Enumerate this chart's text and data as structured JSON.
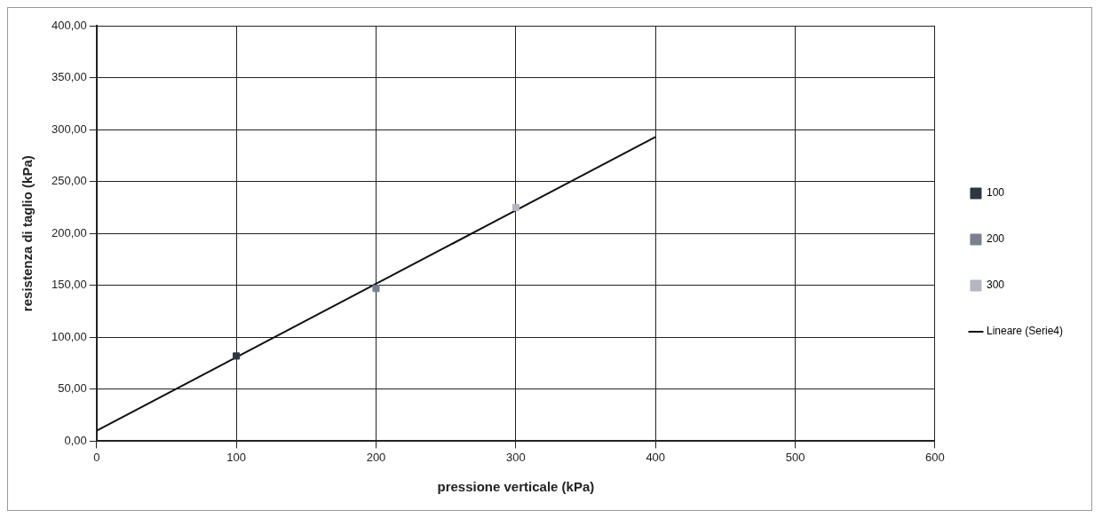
{
  "chart_data": {
    "type": "scatter",
    "xlabel": "pressione verticale (kPa)",
    "ylabel": "resistenza di taglio (kPa)",
    "xlim": [
      0,
      600
    ],
    "xticks": [
      0,
      100,
      200,
      300,
      400,
      500,
      600
    ],
    "ylim": [
      0,
      400
    ],
    "yticks": [
      {
        "value": 0,
        "label": "0,00"
      },
      {
        "value": 50,
        "label": "50,00"
      },
      {
        "value": 100,
        "label": "100,00"
      },
      {
        "value": 150,
        "label": "150,00"
      },
      {
        "value": 200,
        "label": "200,00"
      },
      {
        "value": 250,
        "label": "250,00"
      },
      {
        "value": 300,
        "label": "300,00"
      },
      {
        "value": 350,
        "label": "350,00"
      },
      {
        "value": 400,
        "label": "400,00"
      }
    ],
    "grid": true,
    "legend": "right",
    "marker": "square",
    "series": [
      {
        "name": "100",
        "color": "#2f3642",
        "x": [
          100
        ],
        "values": [
          82
        ]
      },
      {
        "name": "200",
        "color": "#7a7f90",
        "x": [
          200
        ],
        "values": [
          147
        ]
      },
      {
        "name": "300",
        "color": "#b3b6be",
        "x": [
          300
        ],
        "values": [
          225
        ]
      },
      {
        "name": "Lineare (Serie4)",
        "type": "line",
        "color": "#111111",
        "marker": "none",
        "x": [
          0,
          400
        ],
        "values": [
          10,
          293
        ]
      }
    ]
  }
}
